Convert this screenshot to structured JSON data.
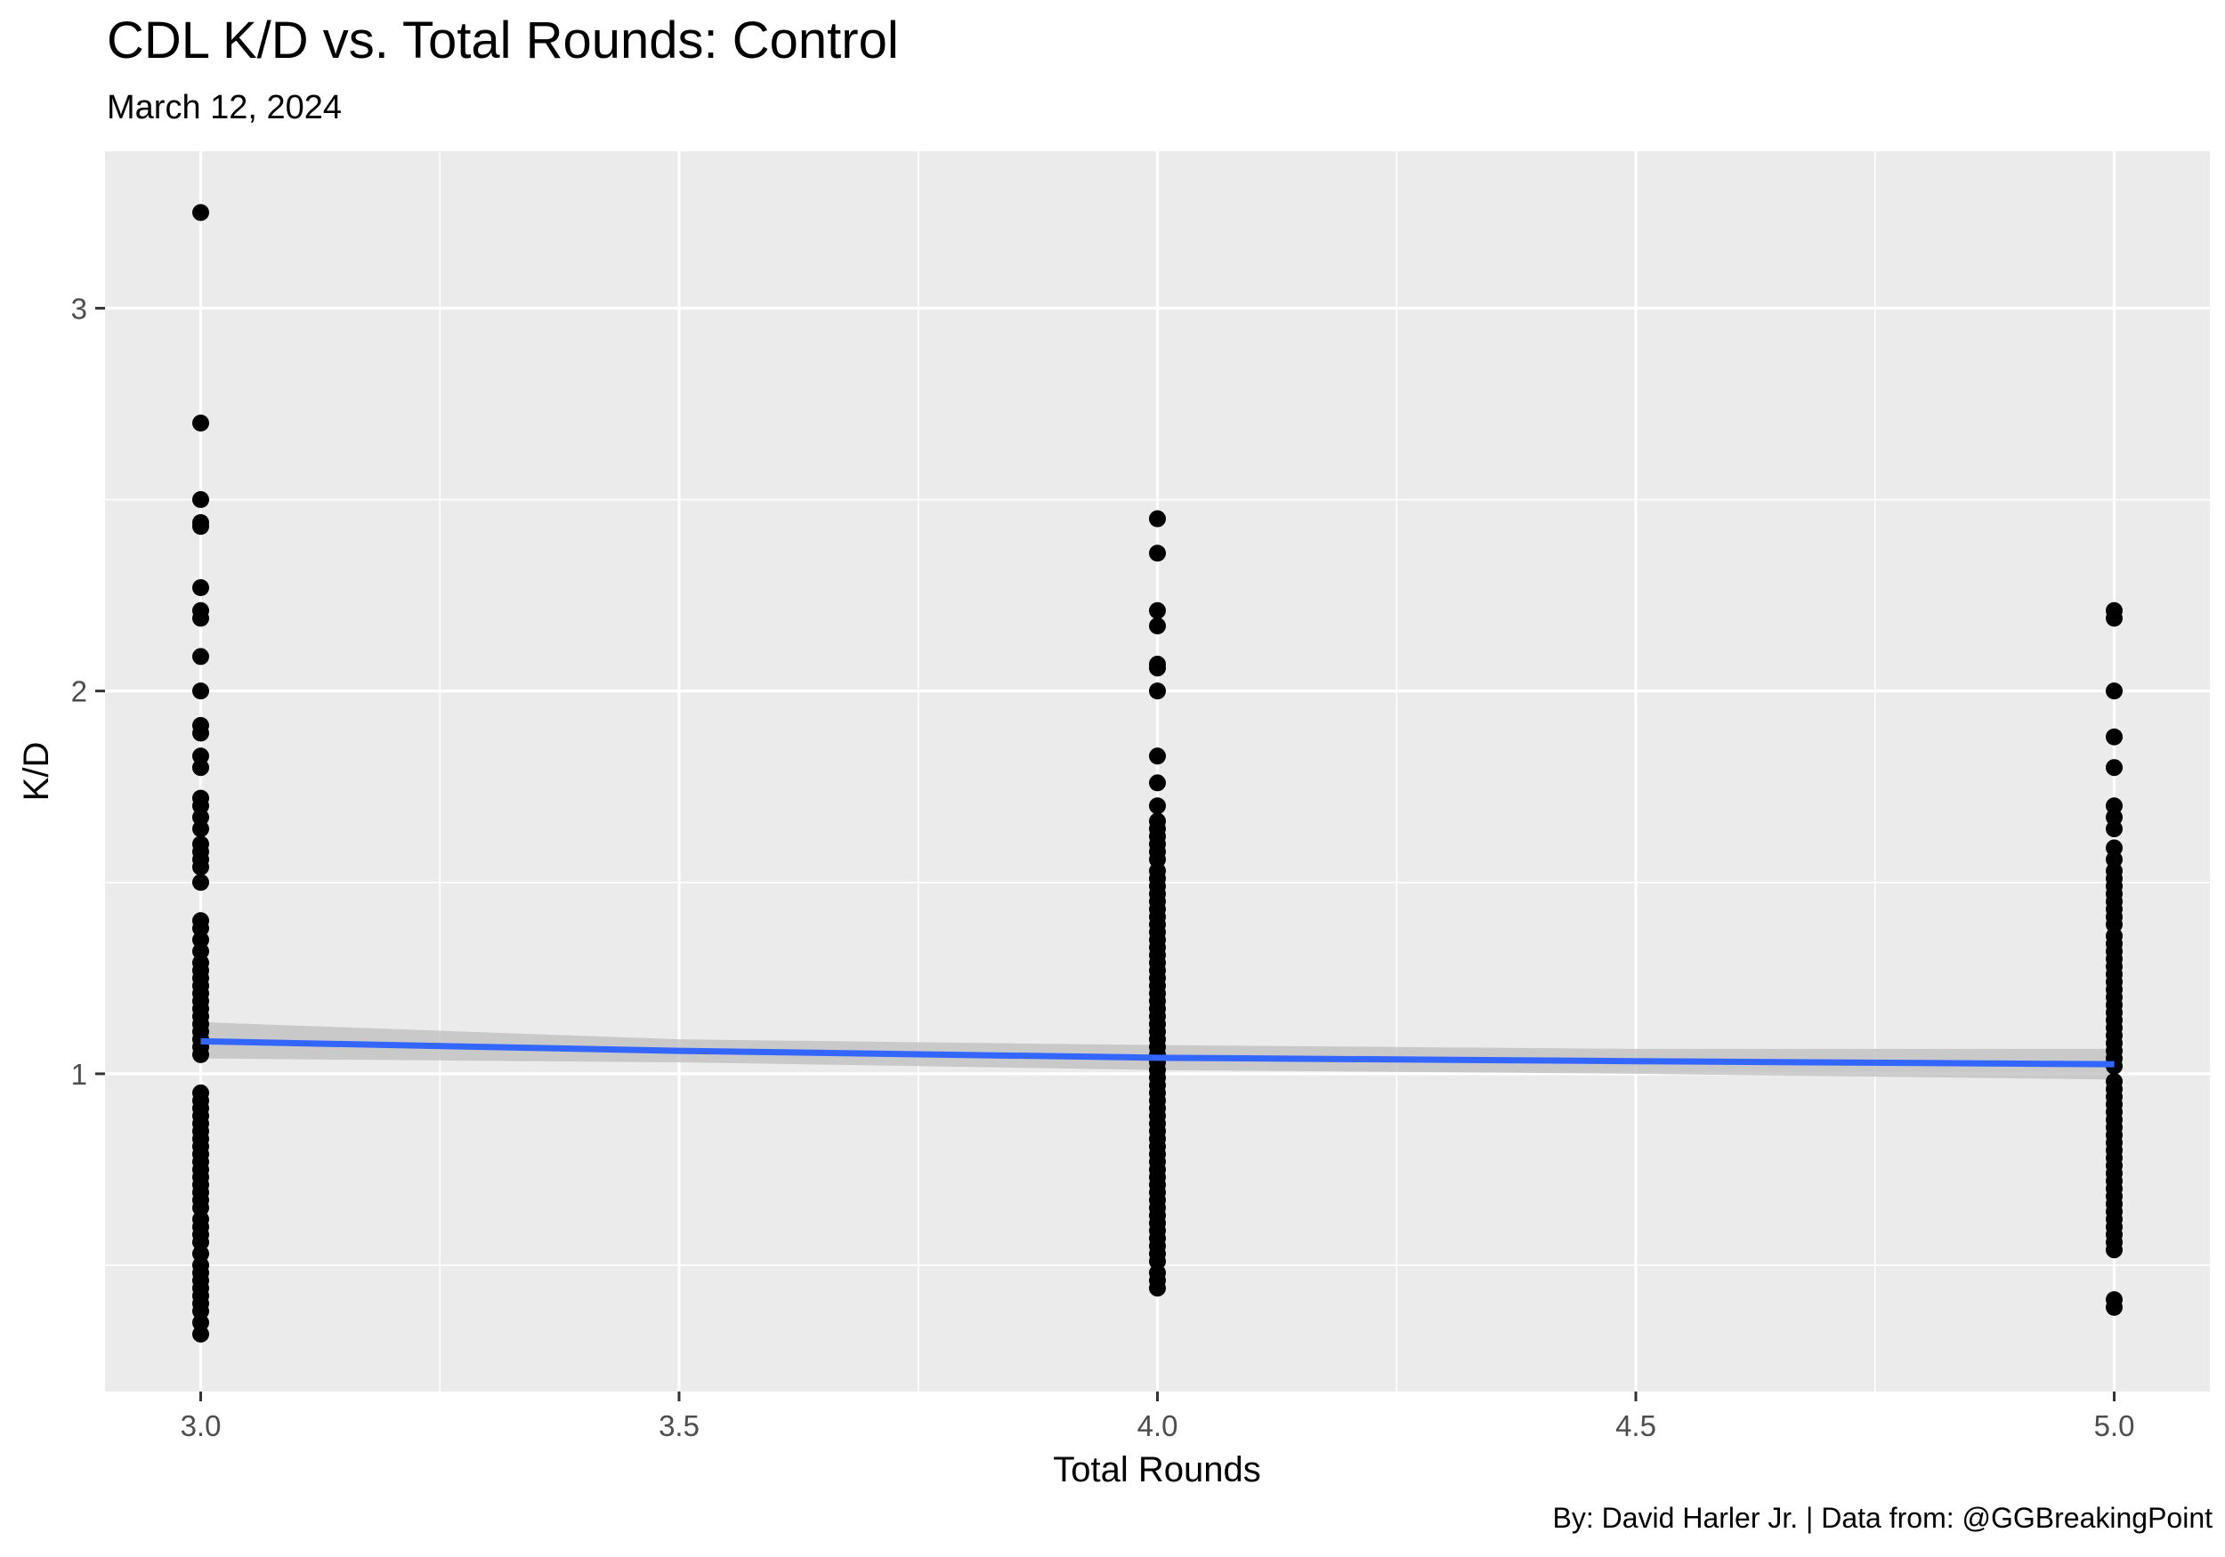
{
  "chart_data": {
    "type": "scatter",
    "title": "CDL K/D vs. Total Rounds: Control",
    "subtitle": "March 12, 2024",
    "caption": "By: David Harler Jr. | Data from: @GGBreakingPoint",
    "xlabel": "Total Rounds",
    "ylabel": "K/D",
    "xlim": [
      2.9,
      5.1
    ],
    "ylim": [
      0.17,
      3.41
    ],
    "x_ticks": [
      3.0,
      3.5,
      4.0,
      4.5,
      5.0
    ],
    "x_tick_labels": [
      "3.0",
      "3.5",
      "4.0",
      "4.5",
      "5.0"
    ],
    "y_ticks": [
      1,
      2,
      3
    ],
    "y_tick_labels": [
      "1",
      "2",
      "3"
    ],
    "grid": true,
    "legend": "none",
    "points": {
      "color": "#000000",
      "series": [
        {
          "x": 3.0,
          "y": [
            3.25,
            2.7,
            2.5,
            2.44,
            2.43,
            2.27,
            2.21,
            2.19,
            2.09,
            2.0,
            1.91,
            1.89,
            1.83,
            1.8,
            1.72,
            1.7,
            1.67,
            1.64,
            1.6,
            1.58,
            1.56,
            1.54,
            1.5,
            1.4,
            1.38,
            1.35,
            1.32,
            1.29,
            1.27,
            1.25,
            1.23,
            1.21,
            1.19,
            1.17,
            1.15,
            1.13,
            1.11,
            1.09,
            1.07,
            1.05,
            0.95,
            0.93,
            0.91,
            0.89,
            0.87,
            0.85,
            0.83,
            0.81,
            0.79,
            0.77,
            0.75,
            0.73,
            0.71,
            0.69,
            0.67,
            0.65,
            0.62,
            0.6,
            0.58,
            0.56,
            0.53,
            0.5,
            0.48,
            0.46,
            0.44,
            0.42,
            0.4,
            0.38,
            0.35,
            0.32
          ]
        },
        {
          "x": 4.0,
          "y": [
            2.45,
            2.36,
            2.21,
            2.17,
            2.07,
            2.06,
            2.0,
            1.83,
            1.76,
            1.7,
            1.66,
            1.64,
            1.62,
            1.6,
            1.58,
            1.56,
            1.53,
            1.51,
            1.49,
            1.47,
            1.45,
            1.43,
            1.41,
            1.39,
            1.37,
            1.35,
            1.33,
            1.31,
            1.29,
            1.27,
            1.25,
            1.23,
            1.21,
            1.19,
            1.17,
            1.15,
            1.13,
            1.11,
            1.09,
            1.07,
            1.05,
            1.03,
            1.01,
            0.99,
            0.97,
            0.95,
            0.93,
            0.91,
            0.89,
            0.87,
            0.85,
            0.83,
            0.81,
            0.79,
            0.77,
            0.75,
            0.73,
            0.71,
            0.69,
            0.67,
            0.65,
            0.63,
            0.61,
            0.59,
            0.57,
            0.55,
            0.53,
            0.51,
            0.48,
            0.46,
            0.44
          ]
        },
        {
          "x": 5.0,
          "y": [
            2.21,
            2.19,
            2.0,
            1.88,
            1.8,
            1.7,
            1.67,
            1.64,
            1.59,
            1.56,
            1.53,
            1.51,
            1.49,
            1.47,
            1.45,
            1.43,
            1.41,
            1.39,
            1.36,
            1.34,
            1.32,
            1.3,
            1.28,
            1.26,
            1.24,
            1.22,
            1.2,
            1.18,
            1.16,
            1.14,
            1.12,
            1.1,
            1.08,
            1.06,
            1.04,
            1.02,
            0.98,
            0.96,
            0.94,
            0.92,
            0.9,
            0.88,
            0.86,
            0.84,
            0.82,
            0.8,
            0.78,
            0.76,
            0.74,
            0.72,
            0.7,
            0.68,
            0.66,
            0.64,
            0.62,
            0.6,
            0.58,
            0.56,
            0.54,
            0.41,
            0.39
          ]
        }
      ]
    },
    "smooth": {
      "color": "#3366FF",
      "ribbon_color": "#BEBEBE",
      "x": [
        3.0,
        3.5,
        4.0,
        4.5,
        5.0
      ],
      "y": [
        1.085,
        1.06,
        1.042,
        1.033,
        1.025
      ],
      "ymin": [
        1.04,
        1.03,
        1.01,
        1.0,
        0.985
      ],
      "ymax": [
        1.135,
        1.09,
        1.075,
        1.065,
        1.065
      ]
    }
  }
}
